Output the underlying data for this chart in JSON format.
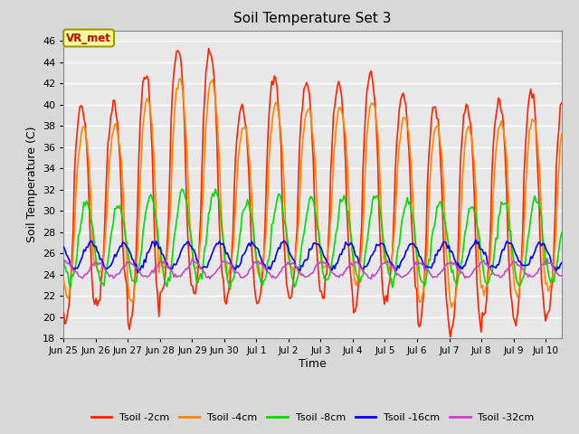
{
  "title": "Soil Temperature Set 3",
  "xlabel": "Time",
  "ylabel": "Soil Temperature (C)",
  "ylim": [
    18,
    47
  ],
  "yticks": [
    18,
    20,
    22,
    24,
    26,
    28,
    30,
    32,
    34,
    36,
    38,
    40,
    42,
    44,
    46
  ],
  "fig_bg_color": "#d8d8d8",
  "plot_bg_color": "#e8e8e8",
  "grid_color": "#ffffff",
  "annotation_text": "VR_met",
  "annotation_color": "#cc0000",
  "annotation_bg": "#ffff99",
  "annotation_border": "#999900",
  "series_labels": [
    "Tsoil -2cm",
    "Tsoil -4cm",
    "Tsoil -8cm",
    "Tsoil -16cm",
    "Tsoil -32cm"
  ],
  "series_colors": [
    "#ff2200",
    "#ff8800",
    "#00dd00",
    "#0000ff",
    "#cc44cc"
  ],
  "xtick_labels": [
    "Jun 25",
    "Jun 26",
    "Jun 27",
    "Jun 28",
    "Jun 29",
    "Jun 30",
    "Jul 1",
    "Jul 2",
    "Jul 3",
    "Jul 4",
    "Jul 5",
    "Jul 6",
    "Jul 7",
    "Jul 8",
    "Jul 9",
    "Jul 10"
  ],
  "n_days": 15.5,
  "samples_per_day": 24
}
